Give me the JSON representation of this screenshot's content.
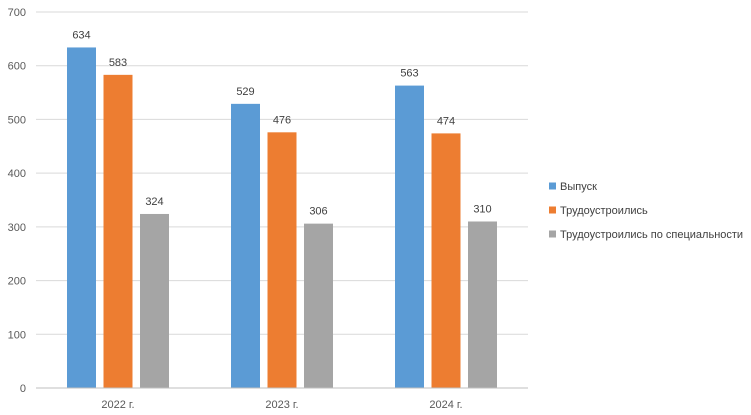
{
  "chart_data": {
    "type": "bar",
    "title": "",
    "xlabel": "",
    "ylabel": "",
    "categories": [
      "2022 г.",
      "2023 г.",
      "2024 г."
    ],
    "series": [
      {
        "name": "Выпуск",
        "values": [
          634,
          529,
          563
        ],
        "color": "#5B9BD5"
      },
      {
        "name": "Трудоустроились",
        "values": [
          583,
          476,
          474
        ],
        "color": "#ED7D31"
      },
      {
        "name": "Трудоустроились по специальности",
        "values": [
          324,
          306,
          310
        ],
        "color": "#A5A5A5"
      }
    ],
    "ylim": [
      0,
      700
    ],
    "yticks": [
      0,
      100,
      200,
      300,
      400,
      500,
      600,
      700
    ],
    "grid": true,
    "legend": "right",
    "data_labels": true
  }
}
